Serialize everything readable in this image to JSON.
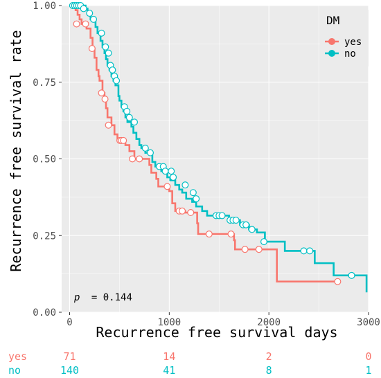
{
  "colors": {
    "yes": "#F8766D",
    "no": "#00BFC4",
    "panel": "#EBEBEB",
    "grid_major": "#FFFFFF"
  },
  "chart_data": {
    "type": "line",
    "subtype": "kaplan-meier step curves",
    "xlabel": "Recurrence free survival days",
    "ylabel": "Recurrence free survival rate",
    "xlim": [
      -80,
      3000
    ],
    "ylim": [
      0,
      1
    ],
    "xticks": [
      0,
      1000,
      2000,
      3000
    ],
    "xtick_labels": [
      "0",
      "1000",
      "2000",
      "3000"
    ],
    "yticks": [
      0,
      0.25,
      0.5,
      0.75,
      1.0
    ],
    "ytick_labels": [
      "0.00",
      "0.25",
      "0.50",
      "0.75",
      "1.00"
    ],
    "grid": true,
    "legend": {
      "title": "DM",
      "placement": "top-right",
      "entries": [
        "yes",
        "no"
      ]
    },
    "annotation": {
      "p_label": "p",
      "p_value_text": "= 0.144"
    },
    "series": [
      {
        "name": "yes",
        "color_key": "yes",
        "steps": [
          [
            0,
            1.0
          ],
          [
            60,
            0.985
          ],
          [
            80,
            0.97
          ],
          [
            100,
            0.955
          ],
          [
            120,
            0.94
          ],
          [
            170,
            0.925
          ],
          [
            210,
            0.895
          ],
          [
            230,
            0.86
          ],
          [
            250,
            0.83
          ],
          [
            270,
            0.79
          ],
          [
            290,
            0.77
          ],
          [
            300,
            0.755
          ],
          [
            330,
            0.715
          ],
          [
            350,
            0.695
          ],
          [
            365,
            0.665
          ],
          [
            380,
            0.635
          ],
          [
            420,
            0.61
          ],
          [
            450,
            0.58
          ],
          [
            480,
            0.56
          ],
          [
            560,
            0.545
          ],
          [
            600,
            0.525
          ],
          [
            650,
            0.5
          ],
          [
            800,
            0.48
          ],
          [
            820,
            0.455
          ],
          [
            870,
            0.435
          ],
          [
            890,
            0.41
          ],
          [
            1000,
            0.395
          ],
          [
            1030,
            0.355
          ],
          [
            1060,
            0.33
          ],
          [
            1160,
            0.325
          ],
          [
            1280,
            0.29
          ],
          [
            1290,
            0.255
          ],
          [
            1650,
            0.235
          ],
          [
            1660,
            0.205
          ],
          [
            2080,
            0.1
          ],
          [
            2700,
            0.1
          ]
        ],
        "censored": [
          [
            70,
            0.94
          ],
          [
            160,
            0.94
          ],
          [
            225,
            0.86
          ],
          [
            320,
            0.715
          ],
          [
            355,
            0.695
          ],
          [
            390,
            0.61
          ],
          [
            505,
            0.56
          ],
          [
            520,
            0.56
          ],
          [
            540,
            0.56
          ],
          [
            630,
            0.5
          ],
          [
            700,
            0.5
          ],
          [
            980,
            0.41
          ],
          [
            1100,
            0.33
          ],
          [
            1130,
            0.33
          ],
          [
            1215,
            0.325
          ],
          [
            1400,
            0.255
          ],
          [
            1620,
            0.255
          ],
          [
            1760,
            0.205
          ],
          [
            1900,
            0.205
          ],
          [
            2690,
            0.1
          ]
        ]
      },
      {
        "name": "no",
        "color_key": "no",
        "steps": [
          [
            0,
            1.0
          ],
          [
            160,
            0.99
          ],
          [
            180,
            0.975
          ],
          [
            210,
            0.955
          ],
          [
            260,
            0.93
          ],
          [
            280,
            0.91
          ],
          [
            310,
            0.885
          ],
          [
            330,
            0.865
          ],
          [
            350,
            0.845
          ],
          [
            365,
            0.825
          ],
          [
            380,
            0.805
          ],
          [
            400,
            0.79
          ],
          [
            420,
            0.77
          ],
          [
            440,
            0.755
          ],
          [
            460,
            0.74
          ],
          [
            490,
            0.705
          ],
          [
            500,
            0.69
          ],
          [
            520,
            0.67
          ],
          [
            540,
            0.655
          ],
          [
            560,
            0.635
          ],
          [
            580,
            0.62
          ],
          [
            620,
            0.605
          ],
          [
            640,
            0.585
          ],
          [
            670,
            0.565
          ],
          [
            700,
            0.545
          ],
          [
            720,
            0.535
          ],
          [
            760,
            0.52
          ],
          [
            830,
            0.49
          ],
          [
            860,
            0.475
          ],
          [
            920,
            0.46
          ],
          [
            980,
            0.44
          ],
          [
            1010,
            0.43
          ],
          [
            1060,
            0.415
          ],
          [
            1100,
            0.4
          ],
          [
            1130,
            0.39
          ],
          [
            1170,
            0.37
          ],
          [
            1230,
            0.36
          ],
          [
            1270,
            0.345
          ],
          [
            1330,
            0.33
          ],
          [
            1380,
            0.315
          ],
          [
            1600,
            0.3
          ],
          [
            1710,
            0.285
          ],
          [
            1800,
            0.27
          ],
          [
            1880,
            0.26
          ],
          [
            1960,
            0.23
          ],
          [
            2160,
            0.2
          ],
          [
            2460,
            0.16
          ],
          [
            2650,
            0.12
          ],
          [
            2980,
            0.065
          ]
        ],
        "censored": [
          [
            30,
            1.0
          ],
          [
            50,
            1.0
          ],
          [
            70,
            1.0
          ],
          [
            90,
            1.0
          ],
          [
            110,
            1.0
          ],
          [
            140,
            0.99
          ],
          [
            200,
            0.975
          ],
          [
            240,
            0.955
          ],
          [
            320,
            0.91
          ],
          [
            360,
            0.865
          ],
          [
            390,
            0.845
          ],
          [
            410,
            0.805
          ],
          [
            430,
            0.79
          ],
          [
            450,
            0.77
          ],
          [
            470,
            0.755
          ],
          [
            550,
            0.67
          ],
          [
            575,
            0.655
          ],
          [
            600,
            0.635
          ],
          [
            650,
            0.62
          ],
          [
            760,
            0.535
          ],
          [
            810,
            0.52
          ],
          [
            900,
            0.475
          ],
          [
            940,
            0.475
          ],
          [
            960,
            0.46
          ],
          [
            1020,
            0.46
          ],
          [
            1040,
            0.44
          ],
          [
            1160,
            0.415
          ],
          [
            1240,
            0.39
          ],
          [
            1270,
            0.37
          ],
          [
            1470,
            0.315
          ],
          [
            1500,
            0.315
          ],
          [
            1530,
            0.315
          ],
          [
            1610,
            0.3
          ],
          [
            1640,
            0.3
          ],
          [
            1670,
            0.3
          ],
          [
            1740,
            0.285
          ],
          [
            1770,
            0.285
          ],
          [
            1830,
            0.27
          ],
          [
            1950,
            0.23
          ],
          [
            2350,
            0.2
          ],
          [
            2410,
            0.2
          ],
          [
            2830,
            0.12
          ]
        ]
      }
    ]
  },
  "risk_table": {
    "times": [
      0,
      1000,
      2000,
      3000
    ],
    "rows": [
      {
        "label": "yes",
        "color_key": "yes",
        "counts": [
          "71",
          "14",
          "2",
          "0"
        ]
      },
      {
        "label": "no",
        "color_key": "no",
        "counts": [
          "140",
          "41",
          "8",
          "1"
        ]
      }
    ]
  }
}
